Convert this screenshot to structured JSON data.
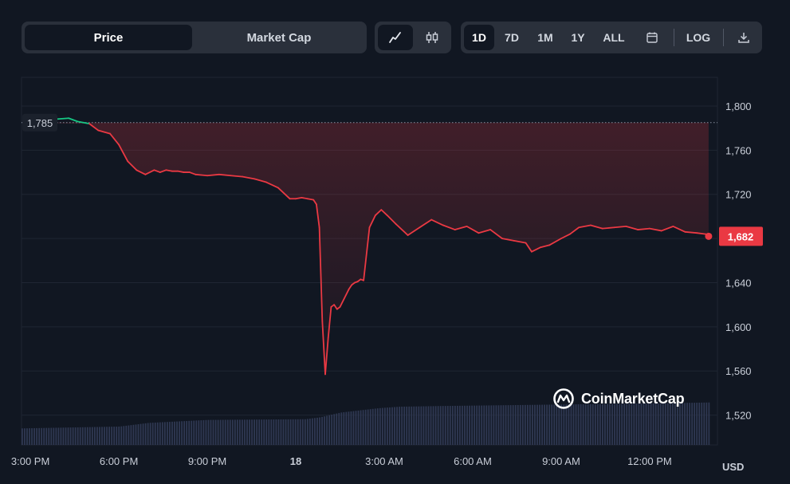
{
  "toolbar": {
    "metric_tabs": [
      {
        "label": "Price",
        "active": true
      },
      {
        "label": "Market Cap",
        "active": false
      }
    ],
    "chart_style_icons": [
      "line-chart-icon",
      "candlestick-icon"
    ],
    "ranges": [
      {
        "label": "1D",
        "active": true
      },
      {
        "label": "7D",
        "active": false
      },
      {
        "label": "1M",
        "active": false
      },
      {
        "label": "1Y",
        "active": false
      },
      {
        "label": "ALL",
        "active": false
      }
    ],
    "calendar_icon": "calendar-icon",
    "log_label": "LOG",
    "download_icon": "download-icon"
  },
  "colors": {
    "background": "#111722",
    "up_line": "#16c784",
    "down_line": "#ea3943",
    "price_badge": "#ea3943",
    "volume_bars": "#2f3852"
  },
  "watermark": "CoinMarketCap",
  "currency": "USD",
  "chart_data": {
    "type": "line",
    "y_ticks": [
      "1,800",
      "1,760",
      "1,720",
      "1,680",
      "1,640",
      "1,600",
      "1,560",
      "1,520"
    ],
    "y_tick_values": [
      1800,
      1760,
      1720,
      1680,
      1640,
      1600,
      1560,
      1520
    ],
    "x_ticks": [
      "3:00 PM",
      "6:00 PM",
      "9:00 PM",
      "18",
      "3:00 AM",
      "6:00 AM",
      "9:00 AM",
      "12:00 PM"
    ],
    "x_tick_hours": [
      0,
      3,
      6,
      9,
      12,
      15,
      18,
      21
    ],
    "x_range_hours": [
      -0.3,
      23.3
    ],
    "ylim": [
      1493,
      1826
    ],
    "open_price": 1785,
    "open_price_label": "1,785",
    "last_price": 1682,
    "last_price_label": "1,682",
    "grid": true,
    "series": [
      {
        "x_hours": [
          -0.2,
          0.3,
          0.8,
          1.3,
          1.6,
          2.0,
          2.3,
          2.7,
          3.0,
          3.3,
          3.6,
          3.9,
          4.2,
          4.4,
          4.6,
          4.8,
          5.0,
          5.2,
          5.4,
          5.6,
          6.0,
          6.4,
          6.8,
          7.2,
          7.6,
          8.0,
          8.4,
          8.8,
          9.0,
          9.2,
          9.4,
          9.6,
          9.7,
          9.8,
          9.9,
          10.0,
          10.1,
          10.2,
          10.3,
          10.4,
          10.5,
          10.8,
          10.9,
          11.0,
          11.1,
          11.2,
          11.3,
          11.5,
          11.7,
          11.9,
          12.1,
          12.4,
          12.8,
          13.2,
          13.6,
          14.0,
          14.4,
          14.8,
          15.2,
          15.6,
          16.0,
          16.4,
          16.8,
          17.0,
          17.3,
          17.6,
          18.0,
          18.3,
          18.6,
          19.0,
          19.4,
          19.8,
          20.2,
          20.6,
          21.0,
          21.4,
          21.8,
          22.2,
          22.6,
          22.9,
          23.0
        ],
        "values": [
          1785,
          1786,
          1788,
          1789,
          1786,
          1784,
          1778,
          1775,
          1765,
          1750,
          1742,
          1738,
          1742,
          1740,
          1742,
          1741,
          1741,
          1740,
          1740,
          1738,
          1737,
          1738,
          1737,
          1736,
          1734,
          1731,
          1726,
          1716,
          1716,
          1717,
          1716,
          1715,
          1711,
          1690,
          1605,
          1557,
          1590,
          1618,
          1620,
          1616,
          1618,
          1634,
          1638,
          1640,
          1641,
          1643,
          1642,
          1690,
          1701,
          1706,
          1701,
          1693,
          1683,
          1690,
          1697,
          1692,
          1688,
          1691,
          1685,
          1688,
          1680,
          1678,
          1676,
          1668,
          1672,
          1674,
          1680,
          1684,
          1690,
          1692,
          1689,
          1690,
          1691,
          1688,
          1689,
          1687,
          1691,
          1686,
          1685,
          1684,
          1682
        ]
      }
    ],
    "volume_profile": {
      "x_hours": [
        -0.3,
        3.0,
        4.0,
        6.0,
        9.3,
        9.8,
        10.5,
        11.8,
        12.5,
        14.0,
        16.0,
        18.0,
        20.0,
        22.0,
        23.3
      ],
      "values": [
        0.045,
        0.05,
        0.06,
        0.068,
        0.07,
        0.075,
        0.088,
        0.1,
        0.104,
        0.106,
        0.108,
        0.11,
        0.112,
        0.114,
        0.116
      ]
    }
  }
}
